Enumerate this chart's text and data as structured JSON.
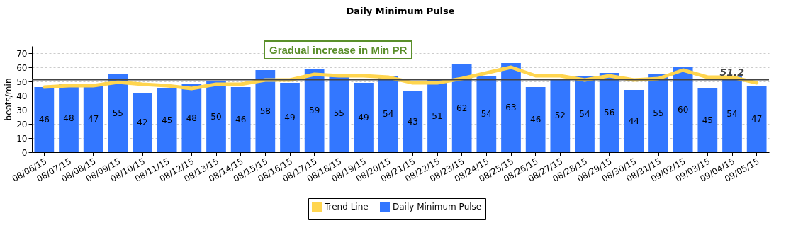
{
  "chart_data": {
    "type": "bar",
    "title": "Daily Minimum Pulse",
    "ylabel": "beats/min",
    "categories": [
      "08/06/15",
      "08/07/15",
      "08/08/15",
      "08/09/15",
      "08/10/15",
      "08/11/15",
      "08/12/15",
      "08/13/15",
      "08/14/15",
      "08/15/15",
      "08/16/15",
      "08/17/15",
      "08/18/15",
      "08/19/15",
      "08/20/15",
      "08/21/15",
      "08/22/15",
      "08/23/15",
      "08/24/15",
      "08/25/15",
      "08/26/15",
      "08/27/15",
      "08/28/15",
      "08/29/15",
      "08/30/15",
      "08/31/15",
      "09/02/15",
      "09/03/15",
      "09/04/15",
      "09/05/15"
    ],
    "series": [
      {
        "name": "Trend Line",
        "type": "line",
        "color": "#ffd54f",
        "values": [
          46,
          47,
          47,
          49.5,
          48,
          47,
          45,
          48,
          48,
          51,
          51,
          55,
          54,
          54,
          53,
          49,
          49,
          52,
          56,
          60,
          54,
          54,
          51,
          54,
          51,
          52,
          58,
          53,
          53,
          49
        ]
      },
      {
        "name": "Daily Minimum Pulse",
        "color": "#3377ff",
        "values": [
          46,
          48,
          47,
          55,
          42,
          45,
          48,
          50,
          46,
          58,
          49,
          59,
          55,
          49,
          54,
          43,
          51,
          62,
          54,
          63,
          46,
          52,
          54,
          56,
          44,
          55,
          60,
          45,
          54,
          47
        ],
        "value_labels": [
          "46",
          "48",
          "47",
          "55",
          "42",
          "45",
          "48",
          "50",
          "46",
          "58",
          "49",
          "59",
          "55",
          "49",
          "54",
          "43",
          "51",
          "62",
          "54",
          "63",
          "46",
          "52",
          "54",
          "56",
          "44",
          "55",
          "60",
          "45",
          "54",
          "47"
        ]
      }
    ],
    "ylim": [
      0,
      75
    ],
    "yticks": [
      0,
      10,
      20,
      30,
      40,
      50,
      60,
      70
    ],
    "grid": "y",
    "legend": "bottom",
    "ref_lines": [
      {
        "axis": "y",
        "value": 51.2,
        "label": "51.2",
        "color": "#444444"
      }
    ],
    "annotations": [
      "Gradual increase in Min PR"
    ]
  }
}
